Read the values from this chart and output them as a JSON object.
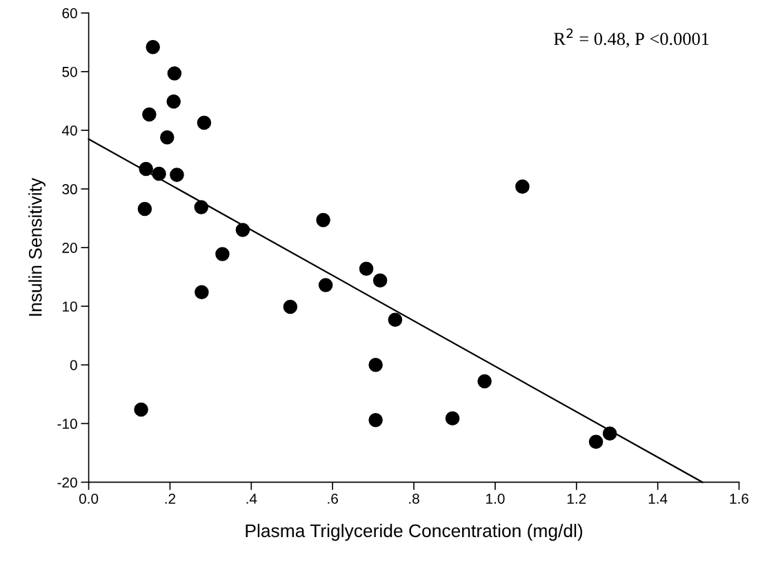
{
  "chart_data": {
    "type": "scatter",
    "xlabel": "Plasma Triglyceride Concentration (mg/dl)",
    "ylabel": "Insulin Sensitivity",
    "annotations": [
      "R$^{2}$ = 0.48, P <0.0001"
    ],
    "xlim": [
      0,
      1.6
    ],
    "ylim": [
      -20,
      60
    ],
    "xticks": [
      {
        "value": 0,
        "label": "0.0"
      },
      {
        "value": 0.2,
        "label": ".2"
      },
      {
        "value": 0.4,
        "label": ".4"
      },
      {
        "value": 0.6,
        "label": ".6"
      },
      {
        "value": 0.8,
        "label": ".8"
      },
      {
        "value": 1.0,
        "label": "1.0"
      },
      {
        "value": 1.2,
        "label": "1.2"
      },
      {
        "value": 1.4,
        "label": "1.4"
      },
      {
        "value": 1.6,
        "label": "1.6"
      }
    ],
    "yticks": [
      -20,
      -10,
      0,
      10,
      20,
      30,
      40,
      50,
      60
    ],
    "marker": "circle",
    "grid": false,
    "legend": false,
    "series": [
      {
        "color": "#000000",
        "x": [
          0.158,
          0.211,
          0.209,
          0.149,
          0.284,
          0.193,
          0.141,
          0.173,
          0.217,
          0.138,
          0.277,
          0.577,
          0.379,
          0.329,
          0.683,
          0.717,
          0.583,
          0.278,
          0.496,
          0.754,
          0.706,
          0.129,
          0.706,
          1.067,
          0.895,
          0.974,
          1.248,
          1.282
        ],
        "values": [
          54.2,
          49.7,
          44.9,
          42.7,
          41.3,
          38.8,
          33.4,
          32.6,
          32.4,
          26.6,
          26.9,
          24.7,
          23.0,
          18.9,
          16.4,
          14.4,
          13.6,
          12.4,
          9.9,
          7.7,
          0.0,
          -7.6,
          -9.4,
          30.4,
          -9.1,
          -2.8,
          -13.1,
          -11.7
        ]
      },
      {
        "type": "line",
        "color": "#000000",
        "x": [
          0,
          1.51
        ],
        "values": [
          38.5,
          -20
        ],
        "marker": "none",
        "line_style": "solid"
      }
    ]
  }
}
